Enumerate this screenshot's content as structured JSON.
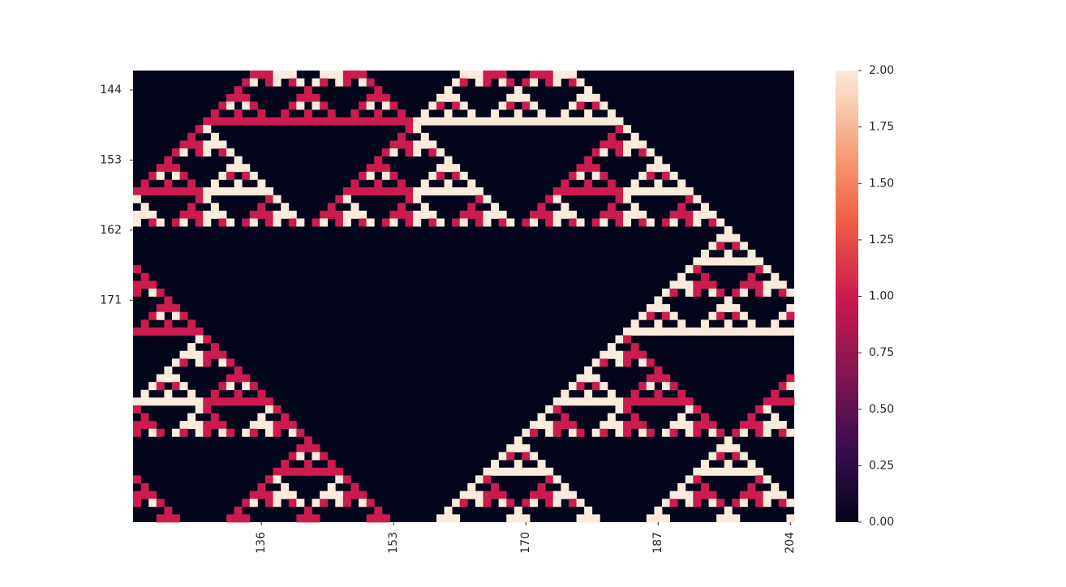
{
  "chart_data": {
    "type": "heatmap",
    "title": "",
    "xlabel": "",
    "ylabel": "",
    "rule": "cellular automaton, 3 states (0,1,2), cell = (left + center + right) mod 3",
    "x_range": [
      120,
      205
    ],
    "y_range": [
      142,
      200
    ],
    "x_ticks": [
      "136",
      "153",
      "170",
      "187",
      "204"
    ],
    "y_ticks": [
      "144",
      "153",
      "162",
      "171"
    ],
    "colorbar": {
      "min": 0,
      "max": 2,
      "ticks": [
        "0.00",
        "0.25",
        "0.50",
        "0.75",
        "1.00",
        "1.25",
        "1.50",
        "1.75",
        "2.00"
      ]
    },
    "colors": {
      "0": "#03051a",
      "1": "#cb1b4f",
      "2": "#faebdd"
    },
    "cmap": [
      "#03051a",
      "#3b0f50",
      "#84154f",
      "#cb1b4f",
      "#f06043",
      "#f6a47d",
      "#faebdd"
    ]
  }
}
